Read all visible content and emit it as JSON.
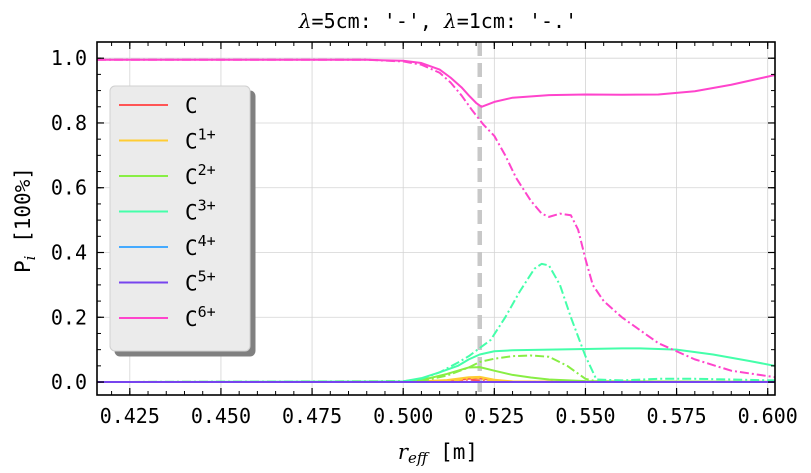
{
  "chart_data": {
    "type": "line",
    "title_parts": {
      "lambda_symbol": "λ",
      "eq1": "=",
      "val1": "5cm: '-', ",
      "eq2": "=",
      "val2": "1cm: '-.'"
    },
    "xlabel": {
      "base": "r",
      "sub": "eff",
      "unit": " [m]"
    },
    "ylabel": {
      "base": "P",
      "sub": "i",
      "unit": " [100%]"
    },
    "xlim": [
      0.416,
      0.602
    ],
    "ylim": [
      -0.04,
      1.05
    ],
    "xticks": [
      "0.425",
      "0.450",
      "0.475",
      "0.500",
      "0.525",
      "0.550",
      "0.575",
      "0.600"
    ],
    "yticks": [
      "0.0",
      "0.2",
      "0.4",
      "0.6",
      "0.8",
      "1.0"
    ],
    "grid": true,
    "legend_position": "upper-left",
    "vline": {
      "x": 0.521,
      "color": "#c8c8c8",
      "style": "dashed"
    },
    "series": [
      {
        "name": "C",
        "sup": "",
        "color": "#ff5555",
        "solid": [
          [
            0.416,
            0
          ],
          [
            0.5,
            0.0
          ],
          [
            0.512,
            0.002
          ],
          [
            0.518,
            0.01
          ],
          [
            0.521,
            0.012
          ],
          [
            0.525,
            0.004
          ],
          [
            0.53,
            0.001
          ],
          [
            0.55,
            0
          ],
          [
            0.602,
            0
          ]
        ],
        "dashdot": [
          [
            0.416,
            0
          ],
          [
            0.512,
            0.0
          ],
          [
            0.518,
            0.008
          ],
          [
            0.521,
            0.004
          ],
          [
            0.525,
            0.001
          ],
          [
            0.602,
            0
          ]
        ]
      },
      {
        "name": "C",
        "sup": "1+",
        "color": "#ffcc33",
        "solid": [
          [
            0.416,
            0
          ],
          [
            0.5,
            0.0
          ],
          [
            0.512,
            0.006
          ],
          [
            0.518,
            0.015
          ],
          [
            0.521,
            0.016
          ],
          [
            0.525,
            0.007
          ],
          [
            0.53,
            0.002
          ],
          [
            0.55,
            0
          ],
          [
            0.602,
            0
          ]
        ],
        "dashdot": [
          [
            0.416,
            0
          ],
          [
            0.512,
            0.0
          ],
          [
            0.517,
            0.01
          ],
          [
            0.52,
            0.014
          ],
          [
            0.523,
            0.006
          ],
          [
            0.53,
            0.0
          ],
          [
            0.602,
            0
          ]
        ]
      },
      {
        "name": "C",
        "sup": "2+",
        "color": "#88ee44",
        "solid": [
          [
            0.416,
            0
          ],
          [
            0.5,
            0.0
          ],
          [
            0.505,
            0.006
          ],
          [
            0.512,
            0.025
          ],
          [
            0.518,
            0.045
          ],
          [
            0.521,
            0.046
          ],
          [
            0.525,
            0.035
          ],
          [
            0.53,
            0.022
          ],
          [
            0.535,
            0.014
          ],
          [
            0.54,
            0.008
          ],
          [
            0.55,
            0.003
          ],
          [
            0.56,
            0.002
          ],
          [
            0.602,
            0.001
          ]
        ],
        "dashdot": [
          [
            0.416,
            0
          ],
          [
            0.505,
            0.003
          ],
          [
            0.512,
            0.02
          ],
          [
            0.518,
            0.045
          ],
          [
            0.521,
            0.062
          ],
          [
            0.525,
            0.072
          ],
          [
            0.53,
            0.08
          ],
          [
            0.535,
            0.082
          ],
          [
            0.54,
            0.078
          ],
          [
            0.545,
            0.05
          ],
          [
            0.55,
            0.01
          ],
          [
            0.553,
            0.002
          ],
          [
            0.56,
            0.0
          ],
          [
            0.602,
            0
          ]
        ]
      },
      {
        "name": "C",
        "sup": "3+",
        "color": "#44ffaa",
        "solid": [
          [
            0.416,
            0
          ],
          [
            0.5,
            0.002
          ],
          [
            0.505,
            0.012
          ],
          [
            0.51,
            0.03
          ],
          [
            0.515,
            0.05
          ],
          [
            0.518,
            0.07
          ],
          [
            0.521,
            0.085
          ],
          [
            0.525,
            0.095
          ],
          [
            0.53,
            0.098
          ],
          [
            0.54,
            0.1
          ],
          [
            0.55,
            0.102
          ],
          [
            0.56,
            0.104
          ],
          [
            0.565,
            0.104
          ],
          [
            0.575,
            0.1
          ],
          [
            0.585,
            0.085
          ],
          [
            0.595,
            0.065
          ],
          [
            0.602,
            0.05
          ]
        ],
        "dashdot": [
          [
            0.416,
            0
          ],
          [
            0.5,
            0.002
          ],
          [
            0.505,
            0.01
          ],
          [
            0.51,
            0.03
          ],
          [
            0.515,
            0.06
          ],
          [
            0.518,
            0.08
          ],
          [
            0.521,
            0.105
          ],
          [
            0.524,
            0.13
          ],
          [
            0.528,
            0.2
          ],
          [
            0.532,
            0.28
          ],
          [
            0.536,
            0.35
          ],
          [
            0.538,
            0.365
          ],
          [
            0.54,
            0.36
          ],
          [
            0.543,
            0.3
          ],
          [
            0.546,
            0.2
          ],
          [
            0.55,
            0.08
          ],
          [
            0.553,
            0.008
          ],
          [
            0.56,
            0.005
          ],
          [
            0.57,
            0.01
          ],
          [
            0.58,
            0.01
          ],
          [
            0.59,
            0.008
          ],
          [
            0.602,
            0.005
          ]
        ]
      },
      {
        "name": "C",
        "sup": "4+",
        "color": "#44aaff",
        "solid": [
          [
            0.416,
            0
          ],
          [
            0.602,
            0
          ]
        ],
        "dashdot": [
          [
            0.416,
            0
          ],
          [
            0.602,
            0
          ]
        ]
      },
      {
        "name": "C",
        "sup": "5+",
        "color": "#7744ee",
        "solid": [
          [
            0.416,
            0
          ],
          [
            0.602,
            0
          ]
        ],
        "dashdot": [
          [
            0.416,
            0
          ],
          [
            0.602,
            0
          ]
        ]
      },
      {
        "name": "C",
        "sup": "6+",
        "color": "#ff44cc",
        "solid": [
          [
            0.416,
            0.995
          ],
          [
            0.45,
            0.995
          ],
          [
            0.49,
            0.995
          ],
          [
            0.5,
            0.992
          ],
          [
            0.505,
            0.985
          ],
          [
            0.51,
            0.965
          ],
          [
            0.513,
            0.94
          ],
          [
            0.516,
            0.91
          ],
          [
            0.518,
            0.885
          ],
          [
            0.52,
            0.862
          ],
          [
            0.5215,
            0.85
          ],
          [
            0.525,
            0.865
          ],
          [
            0.53,
            0.878
          ],
          [
            0.54,
            0.886
          ],
          [
            0.55,
            0.888
          ],
          [
            0.56,
            0.887
          ],
          [
            0.57,
            0.888
          ],
          [
            0.58,
            0.898
          ],
          [
            0.59,
            0.918
          ],
          [
            0.602,
            0.948
          ]
        ],
        "dashdot": [
          [
            0.416,
            0.995
          ],
          [
            0.45,
            0.995
          ],
          [
            0.49,
            0.995
          ],
          [
            0.5,
            0.99
          ],
          [
            0.505,
            0.98
          ],
          [
            0.51,
            0.955
          ],
          [
            0.513,
            0.925
          ],
          [
            0.516,
            0.885
          ],
          [
            0.519,
            0.838
          ],
          [
            0.522,
            0.795
          ],
          [
            0.525,
            0.76
          ],
          [
            0.528,
            0.7
          ],
          [
            0.531,
            0.63
          ],
          [
            0.535,
            0.56
          ],
          [
            0.538,
            0.52
          ],
          [
            0.54,
            0.51
          ],
          [
            0.543,
            0.52
          ],
          [
            0.546,
            0.515
          ],
          [
            0.548,
            0.47
          ],
          [
            0.55,
            0.38
          ],
          [
            0.552,
            0.3
          ],
          [
            0.555,
            0.25
          ],
          [
            0.56,
            0.2
          ],
          [
            0.565,
            0.16
          ],
          [
            0.57,
            0.12
          ],
          [
            0.58,
            0.07
          ],
          [
            0.59,
            0.035
          ],
          [
            0.602,
            0.015
          ]
        ]
      }
    ]
  }
}
